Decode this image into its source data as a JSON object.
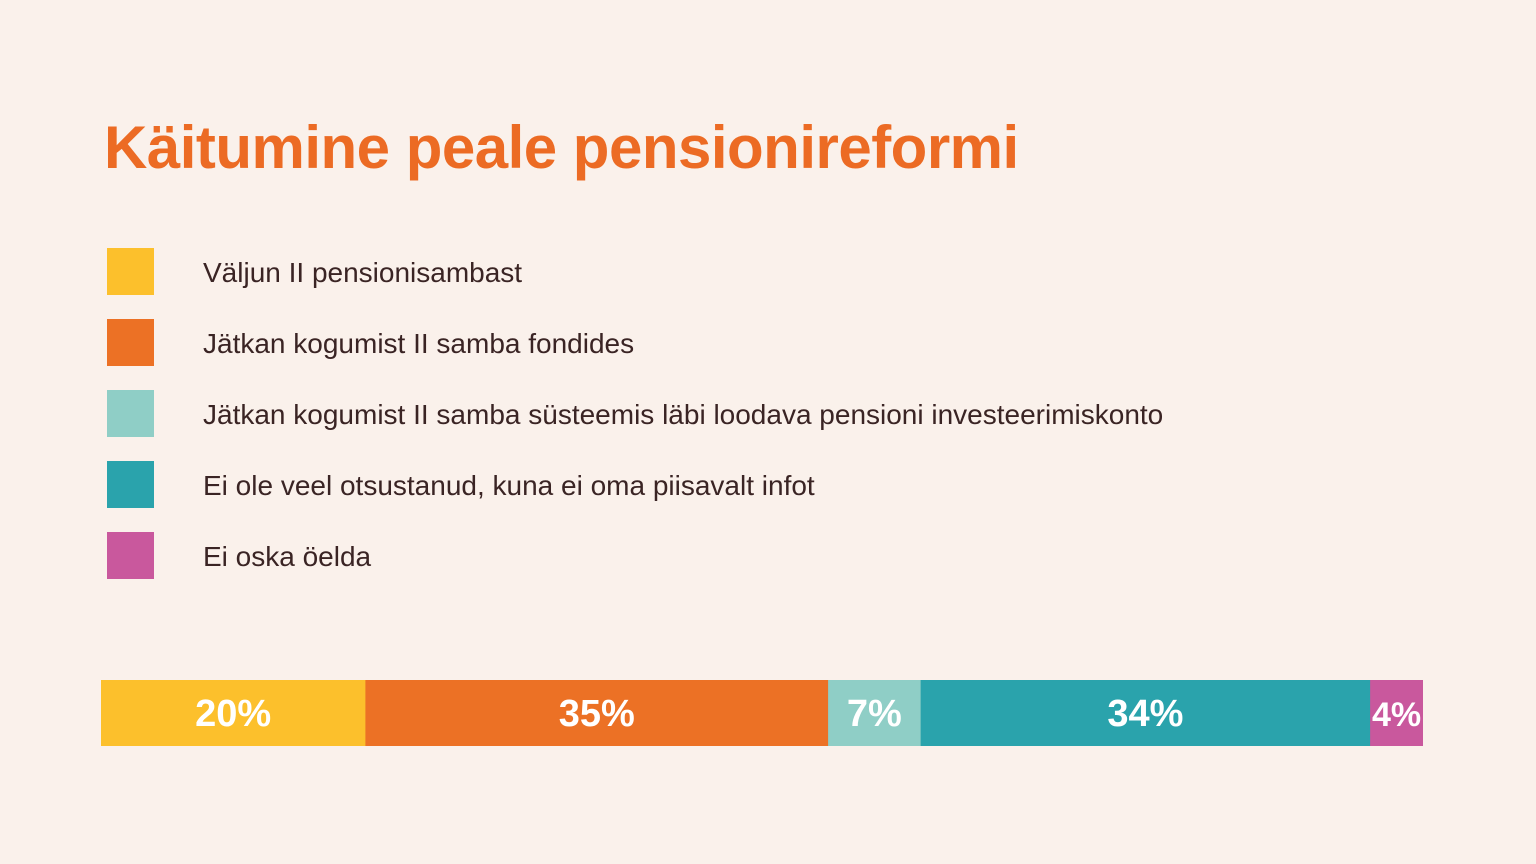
{
  "colors": {
    "background": "#faf1eb",
    "title": "#ec6b24",
    "text": "#3a2424",
    "bar_label": "#ffffff"
  },
  "chart_data": {
    "type": "bar",
    "orientation": "horizontal",
    "stacked": true,
    "title": "Käitumine peale pensionireformi",
    "xlim": [
      0,
      100
    ],
    "unit": "%",
    "legend_placement": "top-left",
    "grid": false,
    "series": [
      {
        "name": "Väljun II pensionisambast",
        "value": 20,
        "label": "20%",
        "color": "#fcc02c"
      },
      {
        "name": "Jätkan kogumist II samba fondides",
        "value": 35,
        "label": "35%",
        "color": "#ec7125"
      },
      {
        "name": "Jätkan kogumist II samba süsteemis läbi loodava pensioni investeerimiskonto",
        "value": 7,
        "label": "7%",
        "color": "#8fcec6"
      },
      {
        "name": "Ei ole veel otsustanud, kuna ei oma piisavalt infot",
        "value": 34,
        "label": "34%",
        "color": "#2aa3ac"
      },
      {
        "name": "Ei oska öelda",
        "value": 4,
        "label": "4%",
        "color": "#c9589d"
      }
    ]
  }
}
